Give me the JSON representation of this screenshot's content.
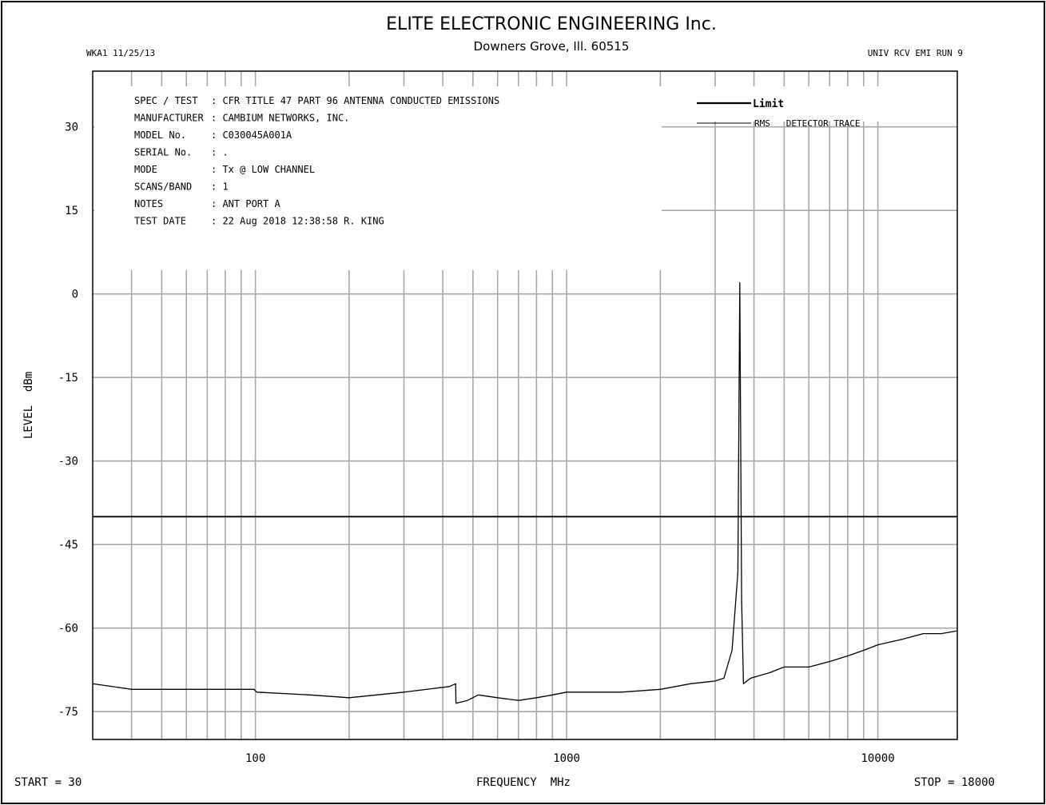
{
  "header": {
    "company": "ELITE ELECTRONIC ENGINEERING Inc.",
    "address": "Downers Grove, Ill. 60515",
    "left_code": "WKA1  11/25/13",
    "right_code": "UNIV RCV EMI  RUN 9"
  },
  "info": {
    "labels": [
      "SPEC / TEST",
      "MANUFACTURER",
      "MODEL No.",
      "SERIAL No.",
      "MODE",
      "SCANS/BAND",
      "NOTES",
      "TEST DATE"
    ],
    "values": [
      ": CFR TITLE 47 PART 96 ANTENNA CONDUCTED EMISSIONS",
      ": CAMBIUM NETWORKS, INC.",
      ": C030045A001A",
      ": .",
      ": Tx @ LOW CHANNEL",
      ": 1",
      ": ANT PORT A",
      ": 22 Aug 2018 12:38:58  R. KING"
    ]
  },
  "footer": {
    "start": "START = 30",
    "stop": "STOP = 18000"
  },
  "chart_data": {
    "type": "line",
    "xlabel": "FREQUENCY  MHz",
    "ylabel": "LEVEL  dBm",
    "x_scale": "log",
    "xlim": [
      30,
      18000
    ],
    "ylim": [
      -80,
      40
    ],
    "x_ticks": [
      100,
      1000,
      10000
    ],
    "x_tick_labels": [
      "100",
      "1000",
      "10000"
    ],
    "y_ticks": [
      30,
      15,
      0,
      -15,
      -30,
      -45,
      -60,
      -75
    ],
    "y_tick_labels": [
      "30",
      "15",
      "0",
      "-15",
      "-30",
      "-45",
      "-60",
      "-75"
    ],
    "grid": true,
    "legend": {
      "placement": "top-right",
      "entries": [
        "Limit",
        "RMS   DETECTOR TRACE"
      ]
    },
    "series": [
      {
        "name": "Limit",
        "x": [
          30,
          18000
        ],
        "values": [
          -40,
          -40
        ]
      },
      {
        "name": "RMS   DETECTOR TRACE",
        "x": [
          30,
          40,
          60,
          99,
          101,
          150,
          200,
          300,
          420,
          440,
          441,
          480,
          520,
          600,
          700,
          800,
          900,
          1000,
          1500,
          2000,
          2500,
          3000,
          3200,
          3400,
          3550,
          3600,
          3650,
          3700,
          3900,
          4500,
          5000,
          6000,
          7000,
          8000,
          9000,
          10000,
          12000,
          14000,
          16000,
          18000
        ],
        "values": [
          -70,
          -71,
          -71,
          -71,
          -71.5,
          -72,
          -72.5,
          -71.5,
          -70.5,
          -70,
          -73.5,
          -73,
          -72,
          -72.5,
          -73,
          -72.5,
          -72,
          -71.5,
          -71.5,
          -71,
          -70,
          -69.5,
          -69,
          -64,
          -50,
          2,
          -55,
          -70,
          -69,
          -68,
          -67,
          -67,
          -66,
          -65,
          -64,
          -63,
          -62,
          -61,
          -61,
          -60.5
        ]
      }
    ]
  }
}
